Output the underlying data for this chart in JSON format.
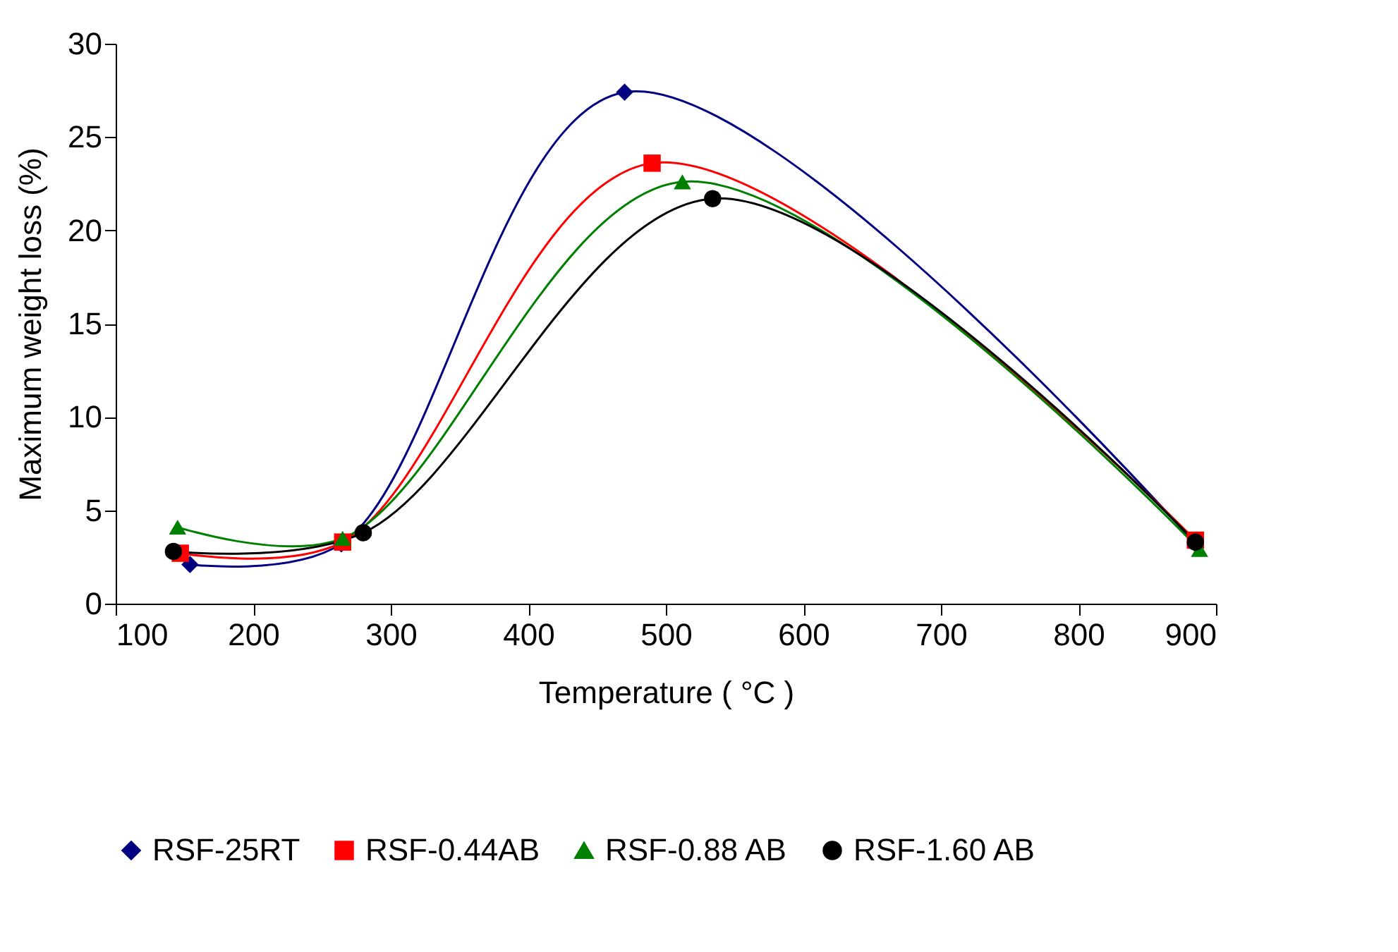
{
  "chart_data": {
    "type": "line",
    "xlabel": "Temperature ( °C )",
    "ylabel": "Maximum weight loss (%)",
    "xlim": [
      100,
      900
    ],
    "xticks": [
      100,
      200,
      300,
      400,
      500,
      600,
      700,
      800,
      900
    ],
    "ylim": [
      0,
      30
    ],
    "yticks": [
      0,
      5,
      10,
      15,
      20,
      25,
      30
    ],
    "grid": false,
    "legend": "bottom",
    "line_style": "solid",
    "series": [
      {
        "name": "RSF-25RT",
        "color": "#000080",
        "marker": "diamond",
        "x": [
          154,
          264,
          470,
          885
        ],
        "values": [
          2.1,
          3.2,
          27.4,
          3.2
        ]
      },
      {
        "name": "RSF-0.44AB",
        "color": "#ff0000",
        "marker": "square",
        "x": [
          147,
          265,
          490,
          885
        ],
        "values": [
          2.7,
          3.3,
          23.6,
          3.4
        ]
      },
      {
        "name": "RSF-0.88 AB",
        "color": "#008000",
        "marker": "triangle",
        "x": [
          145,
          265,
          512,
          888
        ],
        "values": [
          4.1,
          3.5,
          22.6,
          2.9
        ]
      },
      {
        "name": "RSF-1.60 AB",
        "color": "#000000",
        "marker": "circle",
        "x": [
          142,
          280,
          534,
          885
        ],
        "values": [
          2.8,
          3.8,
          21.7,
          3.3
        ]
      }
    ]
  }
}
